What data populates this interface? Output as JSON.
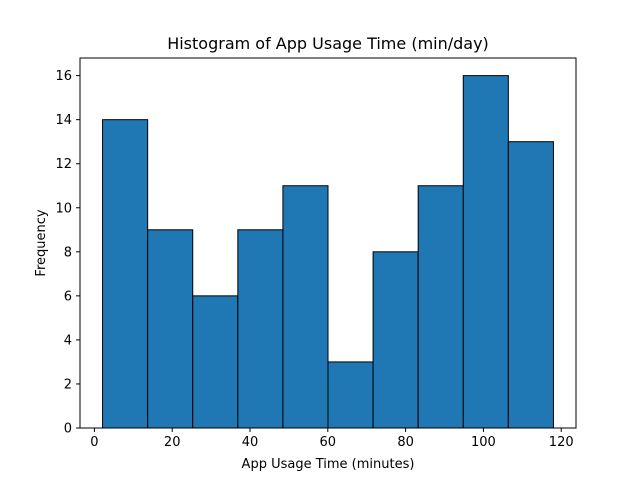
{
  "chart_data": {
    "type": "bar",
    "title": "Histogram of App Usage Time (min/day)",
    "xlabel": "App Usage Time (minutes)",
    "ylabel": "Frequency",
    "bin_edges": [
      2.1,
      13.69,
      25.28,
      36.87,
      48.46,
      60.05,
      71.64,
      83.23,
      94.82,
      106.41,
      118.0
    ],
    "values": [
      14,
      9,
      6,
      9,
      11,
      3,
      8,
      11,
      16,
      13
    ],
    "xlim": [
      -3.7,
      123.8
    ],
    "ylim": [
      0,
      16.8
    ],
    "xticks": [
      0,
      20,
      40,
      60,
      80,
      100,
      120
    ],
    "xtick_labels": [
      "0",
      "20",
      "40",
      "60",
      "80",
      "100",
      "120"
    ],
    "yticks": [
      0,
      2,
      4,
      6,
      8,
      10,
      12,
      14,
      16
    ],
    "ytick_labels": [
      "0",
      "2",
      "4",
      "6",
      "8",
      "10",
      "12",
      "14",
      "16"
    ],
    "grid": false,
    "bar_color": "#1f77b4",
    "edge_color": "#000000"
  }
}
